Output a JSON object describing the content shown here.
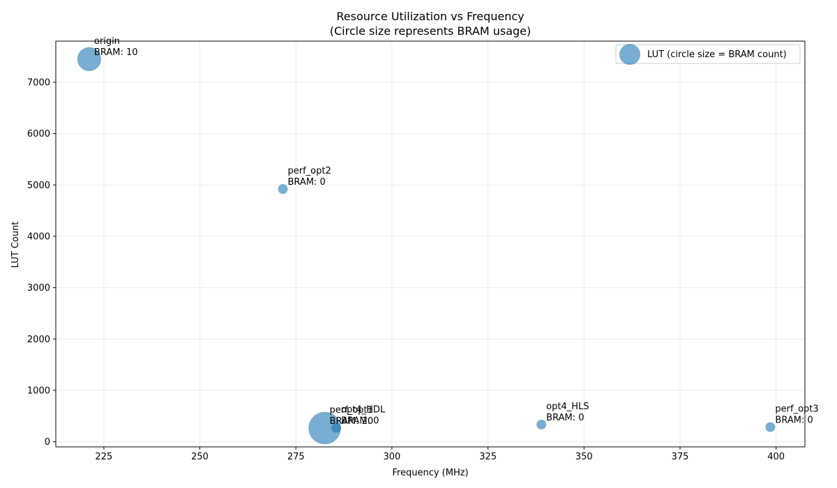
{
  "chart_data": {
    "type": "scatter",
    "title": "Resource Utilization vs Frequency",
    "subtitle": "(Circle size represents BRAM usage)",
    "xlabel": "Frequency (MHz)",
    "ylabel": "LUT Count",
    "xlim": [
      212.5,
      407.5
    ],
    "ylim": [
      -100,
      7800
    ],
    "xticks": [
      225,
      250,
      275,
      300,
      325,
      350,
      375,
      400
    ],
    "yticks": [
      0,
      1000,
      2000,
      3000,
      4000,
      5000,
      6000,
      7000
    ],
    "grid": true,
    "legend": {
      "placement": "top-right",
      "label": "LUT (circle size = BRAM count)"
    },
    "color": "#1f77b4",
    "points": [
      {
        "name": "origin",
        "x": 221.2,
        "y": 7450,
        "bram": 10,
        "annotation": [
          "origin",
          "BRAM: 10"
        ]
      },
      {
        "name": "perf_opt2",
        "x": 271.6,
        "y": 4920,
        "bram": 0,
        "annotation": [
          "perf_opt2",
          "BRAM: 0"
        ]
      },
      {
        "name": "perf_opt1",
        "x": 282.5,
        "y": 265,
        "bram": 20,
        "annotation": [
          "perf_opt1",
          "BRAM: 20"
        ]
      },
      {
        "name": "opt4_HDL",
        "x": 285.5,
        "y": 270,
        "bram": 0,
        "annotation": [
          "opt4_HDL",
          "BRAM: 0"
        ]
      },
      {
        "name": "opt4_HLS",
        "x": 338.9,
        "y": 335,
        "bram": 0,
        "annotation": [
          "opt4_HLS",
          "BRAM: 0"
        ]
      },
      {
        "name": "perf_opt3",
        "x": 398.5,
        "y": 285,
        "bram": 0,
        "annotation": [
          "perf_opt3",
          "BRAM: 0"
        ]
      }
    ]
  }
}
